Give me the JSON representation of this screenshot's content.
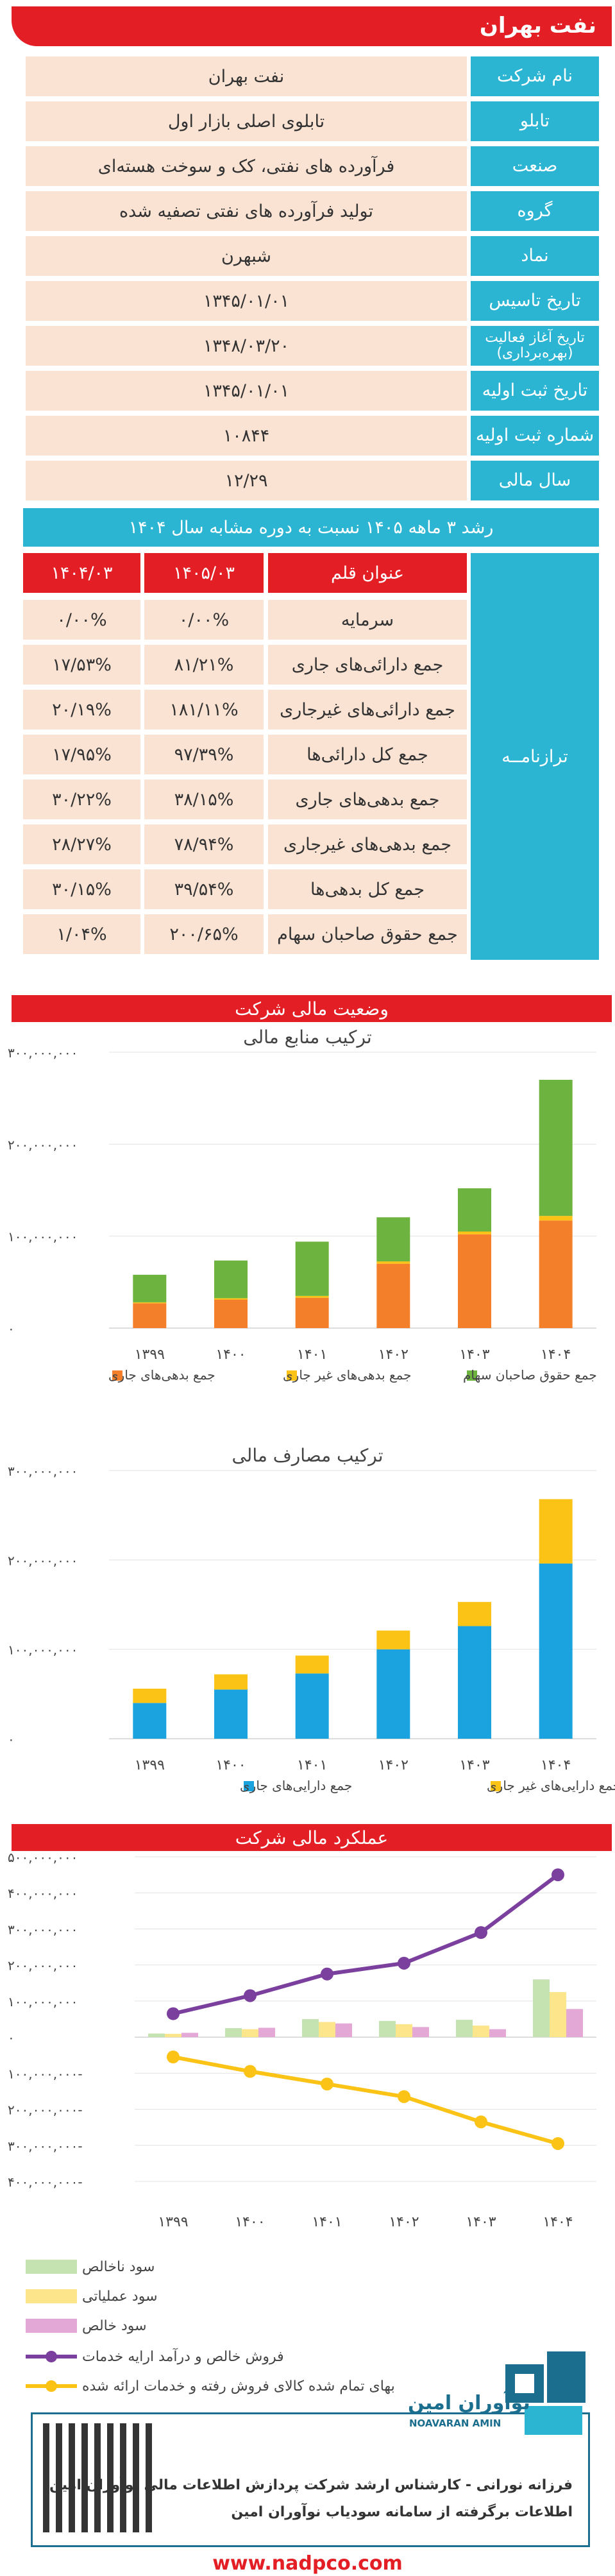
{
  "header": {
    "title": "نفت بهران"
  },
  "info": [
    {
      "label": "نام شرکت",
      "value": "نفت بهران"
    },
    {
      "label": "تابلو",
      "value": "تابلوی اصلی بازار اول"
    },
    {
      "label": "صنعت",
      "value": "فرآورده های نفتی، کک و سوخت هسته‌ای"
    },
    {
      "label": "گروه",
      "value": "تولید فرآورده های نفتی تصفیه شده"
    },
    {
      "label": "نماد",
      "value": "شبهرن"
    },
    {
      "label": "تاریخ تاسیس",
      "value": "۱۳۴۵/۰۱/۰۱"
    },
    {
      "label": "تاریخ آغاز فعالیت (بهره‌برداری)",
      "value": "۱۳۴۸/۰۳/۲۰"
    },
    {
      "label": "تاریخ ثبت اولیه",
      "value": "۱۳۴۵/۰۱/۰۱"
    },
    {
      "label": "شماره ثبت اولیه",
      "value": "۱۰۸۴۴"
    },
    {
      "label": "سال مالی",
      "value": "۱۲/۲۹"
    }
  ],
  "growth_title": "رشد ۳ ماهه ۱۴۰۵ نسبت به دوره مشابه سال ۱۴۰۴",
  "balance_sheet": {
    "section_label": "ترازنامــه",
    "headers": [
      "عنوان قلم",
      "۱۴۰۵/۰۳",
      "۱۴۰۴/۰۳"
    ],
    "rows": [
      [
        "سرمایه",
        "۰/۰۰%",
        "۰/۰۰%"
      ],
      [
        "جمع دارائی‌های جاری",
        "۸۱/۲۱%",
        "۱۷/۵۳%"
      ],
      [
        "جمع دارائی‌های غیرجاری",
        "۱۸۱/۱۱%",
        "۲۰/۱۹%"
      ],
      [
        "جمع کل دارائی‌ها",
        "۹۷/۳۹%",
        "۱۷/۹۵%"
      ],
      [
        "جمع بدهی‌های جاری",
        "۳۸/۱۵%",
        "۳۰/۲۲%"
      ],
      [
        "جمع بدهی‌های غیرجاری",
        "۷۸/۹۴%",
        "۲۸/۲۷%"
      ],
      [
        "جمع کل بدهی‌ها",
        "۳۹/۵۴%",
        "۳۰/۱۵%"
      ],
      [
        "جمع حقوق صاحبان سهام",
        "۲۰۰/۶۵%",
        "۱/۰۴%"
      ]
    ]
  },
  "section_financial_status": "وضعیت مالی شرکت",
  "section_performance": "عملکرد مالی شرکت",
  "colors": {
    "red": "#e31e24",
    "cyan": "#2bb5d3",
    "peach": "#fbe3d4",
    "orange": "#f47f2b",
    "yellow": "#fbc316",
    "green": "#6cb33f",
    "blue": "#1ba3e0",
    "light_green": "#c5e3b1",
    "light_yellow": "#fde58b",
    "pink": "#e3a8d6",
    "purple": "#7b3f9e"
  },
  "chart_data": [
    {
      "type": "bar",
      "stacked": true,
      "title": "ترکیب منابع مالی",
      "categories": [
        "۱۳۹۹",
        "۱۴۰۰",
        "۱۴۰۱",
        "۱۴۰۲",
        "۱۴۰۳",
        "۱۴۰۴"
      ],
      "ylim": [
        0,
        300000000
      ],
      "yticks": [
        "۰",
        "۱۰۰,۰۰۰,۰۰۰",
        "۲۰۰,۰۰۰,۰۰۰",
        "۳۰۰,۰۰۰,۰۰۰"
      ],
      "series": [
        {
          "name": "جمع بدهی‌های جاری",
          "color": "#f47f2b",
          "values": [
            27000000,
            31000000,
            33000000,
            70000000,
            102000000,
            117000000
          ]
        },
        {
          "name": "جمع بدهی‌های غیر جاری",
          "color": "#fbc316",
          "values": [
            1000000,
            1500000,
            2000000,
            2500000,
            3000000,
            5000000
          ]
        },
        {
          "name": "جمع حقوق صاحبان سهام",
          "color": "#6cb33f",
          "values": [
            30000000,
            41000000,
            59000000,
            48000000,
            47000000,
            148000000
          ]
        }
      ],
      "legend_position": "bottom"
    },
    {
      "type": "bar",
      "stacked": true,
      "title": "ترکیب مصارف مالی",
      "categories": [
        "۱۳۹۹",
        "۱۴۰۰",
        "۱۴۰۱",
        "۱۴۰۲",
        "۱۴۰۳",
        "۱۴۰۴"
      ],
      "ylim": [
        0,
        300000000
      ],
      "yticks": [
        "۰",
        "۱۰۰,۰۰۰,۰۰۰",
        "۲۰۰,۰۰۰,۰۰۰",
        "۳۰۰,۰۰۰,۰۰۰"
      ],
      "series": [
        {
          "name": "جمع دارایی‌های جاری",
          "color": "#1ba3e0",
          "values": [
            40000000,
            55000000,
            73000000,
            100000000,
            126000000,
            196000000
          ]
        },
        {
          "name": "جمع دارایی‌های غیر جاری",
          "color": "#fbc316",
          "values": [
            16000000,
            17000000,
            20000000,
            21000000,
            27000000,
            72000000
          ]
        }
      ],
      "legend_position": "bottom"
    },
    {
      "type": "bar",
      "title": "",
      "categories": [
        "۱۳۹۹",
        "۱۴۰۰",
        "۱۴۰۱",
        "۱۴۰۲",
        "۱۴۰۳",
        "۱۴۰۴"
      ],
      "ylim": [
        -400000000,
        500000000
      ],
      "yticks": [
        "۴۰۰,۰۰۰,۰۰۰-",
        "۳۰۰,۰۰۰,۰۰۰-",
        "۲۰۰,۰۰۰,۰۰۰-",
        "۱۰۰,۰۰۰,۰۰۰-",
        "۰",
        "۱۰۰,۰۰۰,۰۰۰",
        "۲۰۰,۰۰۰,۰۰۰",
        "۳۰۰,۰۰۰,۰۰۰",
        "۴۰۰,۰۰۰,۰۰۰",
        "۵۰۰,۰۰۰,۰۰۰"
      ],
      "series": [
        {
          "name": "سود ناخالص",
          "kind": "bar",
          "color": "#c5e3b1",
          "values": [
            10000000,
            25000000,
            50000000,
            45000000,
            48000000,
            160000000
          ]
        },
        {
          "name": "سود عملیاتی",
          "kind": "bar",
          "color": "#fde58b",
          "values": [
            9000000,
            22000000,
            42000000,
            36000000,
            32000000,
            125000000
          ]
        },
        {
          "name": "سود خالص",
          "kind": "bar",
          "color": "#e3a8d6",
          "values": [
            12000000,
            26000000,
            38000000,
            28000000,
            22000000,
            78000000
          ]
        },
        {
          "name": "فروش خالص و درآمد ارایه خدمات",
          "kind": "line",
          "color": "#7b3f9e",
          "values": [
            65000000,
            115000000,
            175000000,
            205000000,
            290000000,
            450000000
          ]
        },
        {
          "name": "بهای تمام شده کالای فروش رفته و خدمات ارائه شده",
          "kind": "line",
          "color": "#fbc316",
          "values": [
            -55000000,
            -95000000,
            -130000000,
            -165000000,
            -235000000,
            -295000000
          ]
        }
      ],
      "legend_position": "bottom"
    }
  ],
  "footer": {
    "brand_fa": "نوآوران امین",
    "brand_en": "NOAVARAN AMIN",
    "line1": "فرزانه نورانی - کارشناس ارشد شرکت پردازش اطلاعات مالی نوآوران امین",
    "line2": "اطلاعات برگرفته از سامانه سودیاب نوآوران امین",
    "url": "www.nadpco.com"
  }
}
